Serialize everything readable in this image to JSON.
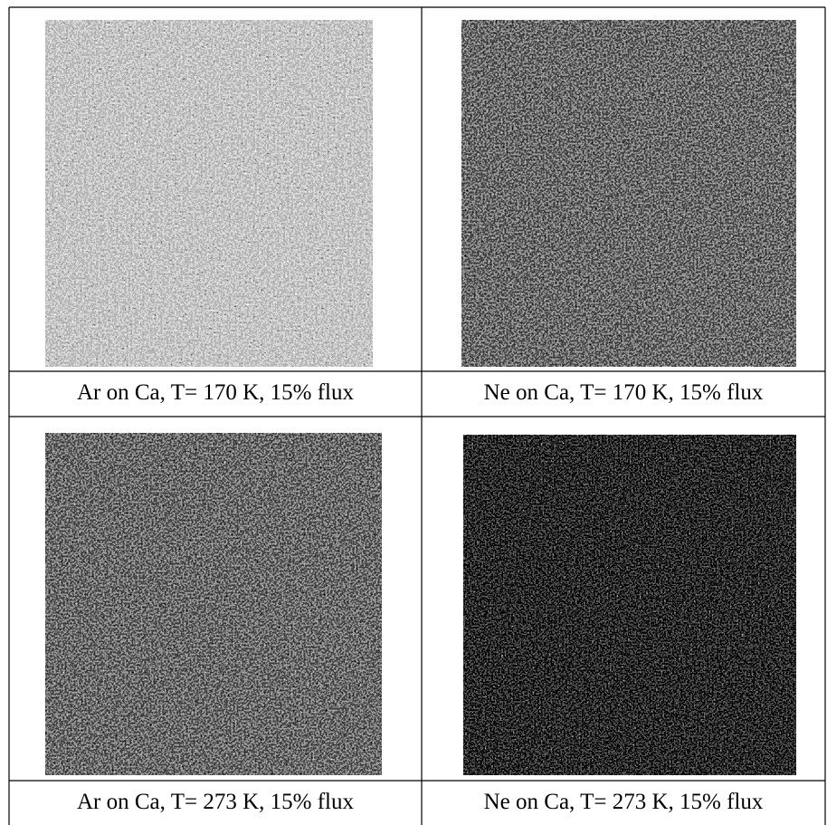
{
  "figure": {
    "panels": [
      {
        "caption": "Ar on Ca, T= 170 K, 15% flux"
      },
      {
        "caption": "Ne on Ca, T= 170 K, 15% flux"
      },
      {
        "caption": "Ar on Ca, T= 273 K, 15% flux"
      },
      {
        "caption": "Ne on Ca, T= 273 K, 15% flux"
      }
    ]
  }
}
